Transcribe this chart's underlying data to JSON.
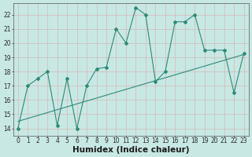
{
  "title": "",
  "xlabel": "Humidex (Indice chaleur)",
  "x_values": [
    0,
    1,
    2,
    3,
    4,
    5,
    6,
    7,
    8,
    9,
    10,
    11,
    12,
    13,
    14,
    15,
    16,
    17,
    18,
    19,
    20,
    21,
    22,
    23
  ],
  "y_values": [
    14,
    17,
    17.5,
    18,
    14.2,
    17.5,
    14,
    17,
    18.2,
    18.3,
    21,
    20,
    22.5,
    22,
    17.3,
    18,
    21.5,
    21.5,
    22,
    19.5,
    19.5,
    19.5,
    16.5,
    19.3
  ],
  "trend_x": [
    0,
    23
  ],
  "trend_y": [
    14.5,
    19.2
  ],
  "line_color": "#2e8b77",
  "bg_color": "#c8e8e4",
  "grid_color": "#b0d4d0",
  "ylim": [
    13.5,
    22.8
  ],
  "xlim": [
    -0.5,
    23.5
  ],
  "yticks": [
    14,
    15,
    16,
    17,
    18,
    19,
    20,
    21,
    22
  ],
  "xticks": [
    0,
    1,
    2,
    3,
    4,
    5,
    6,
    7,
    8,
    9,
    10,
    11,
    12,
    13,
    14,
    15,
    16,
    17,
    18,
    19,
    20,
    21,
    22,
    23
  ],
  "tick_fontsize": 5.5,
  "label_fontsize": 7.5
}
